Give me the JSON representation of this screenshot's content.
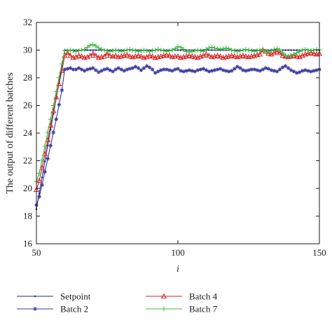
{
  "chart_data": {
    "type": "line",
    "xlabel": "i",
    "ylabel": "The output of different batches",
    "xlim": [
      50,
      150
    ],
    "ylim": [
      16,
      32
    ],
    "xticks": [
      "50",
      "100",
      "150"
    ],
    "yticks": [
      "16",
      "18",
      "20",
      "22",
      "24",
      "26",
      "28",
      "30",
      "32"
    ],
    "grid": false,
    "legend_position": "bottom",
    "x": [
      50,
      51,
      52,
      53,
      54,
      55,
      56,
      57,
      58,
      59,
      60,
      61,
      62,
      63,
      64,
      65,
      66,
      67,
      68,
      69,
      70,
      71,
      72,
      73,
      74,
      75,
      76,
      77,
      78,
      79,
      80,
      81,
      82,
      83,
      84,
      85,
      86,
      87,
      88,
      89,
      90,
      91,
      92,
      93,
      94,
      95,
      96,
      97,
      98,
      99,
      100,
      101,
      102,
      103,
      104,
      105,
      106,
      107,
      108,
      109,
      110,
      111,
      112,
      113,
      114,
      115,
      116,
      117,
      118,
      119,
      120,
      121,
      122,
      123,
      124,
      125,
      126,
      127,
      128,
      129,
      130,
      131,
      132,
      133,
      134,
      135,
      136,
      137,
      138,
      139,
      140,
      141,
      142,
      143,
      144,
      145,
      146,
      147,
      148,
      149,
      150
    ],
    "series": [
      {
        "name": "Setpoint",
        "color": "#1f2f8f",
        "marker": "dot",
        "values": [
          18.5,
          19.65,
          20.8,
          21.95,
          23.1,
          24.25,
          25.4,
          26.55,
          27.7,
          28.85,
          30,
          30,
          30,
          30,
          30,
          30,
          30,
          30,
          30,
          30,
          30,
          30,
          30,
          30,
          30,
          30,
          30,
          30,
          30,
          30,
          30,
          30,
          30,
          30,
          30,
          30,
          30,
          30,
          30,
          30,
          30,
          30,
          30,
          30,
          30,
          30,
          30,
          30,
          30,
          30,
          30,
          30,
          30,
          30,
          30,
          30,
          30,
          30,
          30,
          30,
          30,
          30,
          30,
          30,
          30,
          30,
          30,
          30,
          30,
          30,
          30,
          30,
          30,
          30,
          30,
          30,
          30,
          30,
          30,
          30,
          30,
          30,
          30,
          30,
          30,
          30,
          30,
          30,
          30,
          30,
          30,
          30,
          30,
          30,
          30,
          30,
          30,
          30,
          30,
          30,
          30
        ]
      },
      {
        "name": "Batch 2",
        "color": "#3a3aa0",
        "marker": "star",
        "values": [
          18.8,
          19.4,
          20.25,
          21.2,
          22.15,
          23.1,
          24.05,
          25.0,
          26.05,
          27.1,
          28.6,
          28.65,
          28.7,
          28.6,
          28.6,
          28.7,
          28.6,
          28.5,
          28.6,
          28.65,
          28.7,
          28.55,
          28.4,
          28.5,
          28.6,
          28.65,
          28.55,
          28.45,
          28.6,
          28.7,
          28.6,
          28.5,
          28.6,
          28.65,
          28.7,
          28.8,
          28.7,
          28.55,
          28.7,
          28.85,
          28.75,
          28.6,
          28.35,
          28.45,
          28.55,
          28.6,
          28.6,
          28.55,
          28.5,
          28.6,
          28.65,
          28.5,
          28.45,
          28.5,
          28.55,
          28.5,
          28.45,
          28.55,
          28.6,
          28.65,
          28.55,
          28.45,
          28.5,
          28.55,
          28.6,
          28.65,
          28.55,
          28.5,
          28.45,
          28.5,
          28.65,
          28.8,
          28.7,
          28.55,
          28.5,
          28.55,
          28.6,
          28.6,
          28.55,
          28.5,
          28.6,
          28.7,
          28.65,
          28.55,
          28.5,
          28.45,
          28.6,
          28.75,
          28.85,
          28.7,
          28.55,
          28.45,
          28.35,
          28.4,
          28.5,
          28.55,
          28.5,
          28.45,
          28.5,
          28.55,
          28.6
        ]
      },
      {
        "name": "Batch 4",
        "color": "#d81e1e",
        "marker": "triangle",
        "values": [
          19.9,
          20.55,
          21.5,
          22.5,
          23.5,
          24.55,
          25.6,
          26.6,
          27.55,
          28.5,
          29.6,
          29.8,
          29.6,
          29.45,
          29.5,
          29.6,
          29.55,
          29.45,
          29.5,
          29.6,
          29.75,
          29.6,
          29.45,
          29.5,
          29.55,
          29.75,
          29.6,
          29.55,
          29.6,
          29.5,
          29.55,
          29.6,
          29.65,
          29.55,
          29.5,
          29.55,
          29.6,
          29.55,
          29.45,
          29.5,
          29.6,
          29.55,
          29.45,
          29.5,
          29.55,
          29.6,
          29.65,
          29.6,
          29.5,
          29.55,
          29.55,
          29.45,
          29.5,
          29.55,
          29.6,
          29.55,
          29.5,
          29.45,
          29.55,
          29.6,
          29.7,
          29.6,
          29.5,
          29.55,
          29.6,
          29.55,
          29.45,
          29.5,
          29.55,
          29.6,
          29.55,
          29.5,
          29.55,
          29.6,
          29.55,
          29.5,
          29.55,
          29.6,
          29.65,
          29.7,
          30.0,
          29.9,
          29.75,
          29.7,
          29.8,
          29.9,
          29.8,
          29.6,
          29.55,
          29.5,
          29.55,
          29.6,
          29.55,
          29.5,
          29.6,
          29.7,
          29.75,
          29.8,
          29.75,
          29.7,
          29.75
        ]
      },
      {
        "name": "Batch 7",
        "color": "#3fb83f",
        "marker": "plus",
        "values": [
          20.5,
          21.1,
          22.05,
          23.05,
          24.05,
          25.0,
          26.0,
          27.0,
          28.0,
          29.0,
          29.95,
          29.95,
          30.0,
          29.95,
          29.9,
          29.95,
          30.0,
          30.05,
          30.2,
          30.35,
          30.4,
          30.3,
          30.15,
          30.05,
          30.0,
          29.95,
          29.9,
          29.95,
          30.0,
          29.95,
          29.9,
          29.95,
          30.0,
          30.05,
          30.0,
          29.95,
          29.9,
          29.95,
          30.0,
          29.95,
          29.9,
          29.95,
          30.0,
          30.05,
          30.0,
          29.95,
          29.9,
          29.95,
          30.0,
          30.1,
          30.25,
          30.2,
          30.05,
          29.9,
          29.85,
          29.9,
          29.95,
          30.0,
          29.95,
          29.9,
          30.05,
          30.15,
          30.2,
          30.15,
          30.1,
          30.05,
          30.1,
          30.15,
          30.1,
          30.0,
          29.95,
          29.9,
          29.95,
          30.0,
          30.05,
          30.0,
          29.95,
          29.9,
          29.95,
          30.0,
          30.05,
          29.9,
          29.85,
          29.95,
          30.05,
          30.1,
          30.0,
          29.8,
          29.6,
          29.55,
          29.6,
          29.7,
          29.8,
          29.9,
          30.0,
          30.05,
          30.0,
          29.95,
          30.0,
          30.05,
          30.0
        ]
      }
    ]
  }
}
